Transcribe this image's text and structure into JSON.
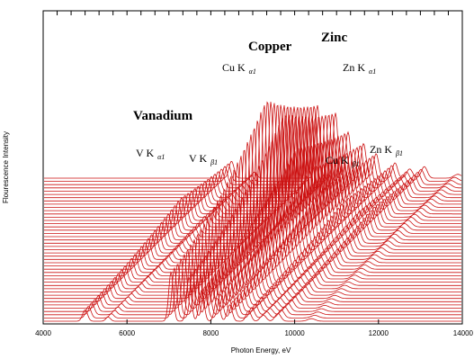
{
  "chart_data": {
    "type": "line",
    "title": "",
    "xlabel": "Photon Energy, eV",
    "ylabel": "Flourescence Intensity",
    "xlim": [
      4000,
      14000
    ],
    "x_ticks": [
      4000,
      6000,
      8000,
      10000,
      12000,
      14000
    ],
    "x_tick_labels": [
      "4000",
      "6000",
      "8000",
      "10000",
      "12000",
      "14000"
    ],
    "grid": false,
    "series_color": "#cc1111",
    "stack_count": 45,
    "stack_description": "waterfall of stacked spectra, successive traces shifted down and to the left",
    "peaks": [
      {
        "name": "V Kα1",
        "energy": 4952,
        "height": 0.25
      },
      {
        "name": "V Kβ1",
        "energy": 5427,
        "height": 0.1
      },
      {
        "name": "Cu Kα1",
        "energy": 8048,
        "height": 0.45
      },
      {
        "name": "Cu Kβ1",
        "energy": 8905,
        "height": 0.3
      },
      {
        "name": "Zn Kα1",
        "energy": 8639,
        "height": 0.5
      },
      {
        "name": "Zn Kβ1",
        "energy": 9572,
        "height": 0.2
      }
    ],
    "annotations": {
      "vanadium": "Vanadium",
      "copper": "Copper",
      "zinc": "Zinc",
      "v_ka": {
        "main": "V K",
        "sub": "α1"
      },
      "v_kb": {
        "main": "V K",
        "sub": "β1"
      },
      "cu_ka": {
        "main": "Cu K",
        "sub": "α1"
      },
      "cu_kb": {
        "main": "Cu K",
        "sub": "β1"
      },
      "zn_ka": {
        "main": "Zn K",
        "sub": "α1"
      },
      "zn_kb": {
        "main": "Zn K",
        "sub": "β1"
      }
    }
  }
}
